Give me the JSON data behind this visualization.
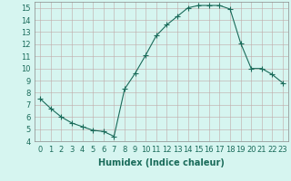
{
  "x": [
    0,
    1,
    2,
    3,
    4,
    5,
    6,
    7,
    8,
    9,
    10,
    11,
    12,
    13,
    14,
    15,
    16,
    17,
    18,
    19,
    20,
    21,
    22,
    23
  ],
  "y": [
    7.5,
    6.7,
    6.0,
    5.5,
    5.2,
    4.9,
    4.8,
    4.4,
    8.3,
    9.6,
    11.1,
    12.7,
    13.6,
    14.3,
    15.0,
    15.2,
    15.2,
    15.2,
    14.9,
    12.1,
    10.0,
    10.0,
    9.5,
    8.8
  ],
  "line_color": "#1a6b5a",
  "marker": "+",
  "marker_size": 4,
  "bg_color": "#d6f5f0",
  "grid_color": "#c0a8a8",
  "xlabel": "Humidex (Indice chaleur)",
  "xlim": [
    -0.5,
    23.5
  ],
  "ylim": [
    4,
    15.5
  ],
  "yticks": [
    4,
    5,
    6,
    7,
    8,
    9,
    10,
    11,
    12,
    13,
    14,
    15
  ],
  "xticks": [
    0,
    1,
    2,
    3,
    4,
    5,
    6,
    7,
    8,
    9,
    10,
    11,
    12,
    13,
    14,
    15,
    16,
    17,
    18,
    19,
    20,
    21,
    22,
    23
  ],
  "label_fontsize": 7,
  "tick_fontsize": 6
}
